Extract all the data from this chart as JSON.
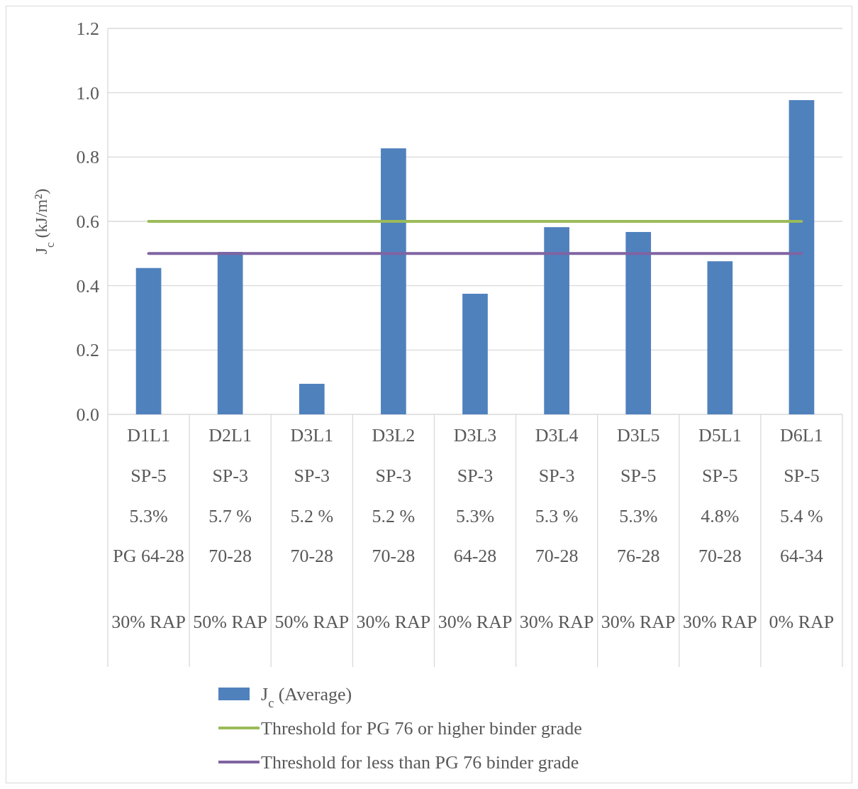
{
  "chart_data": {
    "type": "bar",
    "ylabel": "J$_{c}$ (kJ/m²)",
    "categories": [
      "D1L1\nSP-5\n5.3%\nPG 64-28\n30% RAP",
      "D2L1\nSP-3\n5.7 %\n70-28\n50% RAP",
      "D3L1\nSP-3\n5.2 %\n70-28\n50% RAP",
      "D3L2\nSP-3\n5.2 %\n70-28\n30% RAP",
      "D3L3\nSP-3\n5.3%\n64-28\n30% RAP",
      "D3L4\nSP-3\n5.3 %\n70-28\n30% RAP",
      "D3L5\nSP-5\n5.3%\n76-28\n30% RAP",
      "D5L1\nSP-5\n4.8%\n70-28\n30% RAP",
      "D6L1\nSP-5\n5.4 %\n64-34\n0% RAP"
    ],
    "series": [
      {
        "name": "J$_{c}$ (Average)",
        "color": "#4f81bd",
        "values": [
          0.455,
          0.505,
          0.095,
          0.827,
          0.375,
          0.582,
          0.567,
          0.476,
          0.977
        ]
      },
      {
        "name": "Threshold for PG 76 or higher binder grade",
        "type": "line",
        "color": "#9bbb59",
        "values": [
          0.6,
          0.6,
          0.6,
          0.6,
          0.6,
          0.6,
          0.6,
          0.6,
          0.6
        ]
      },
      {
        "name": "Threshold for less than PG 76 binder grade",
        "type": "line",
        "color": "#8064a2",
        "values": [
          0.5,
          0.5,
          0.5,
          0.5,
          0.5,
          0.5,
          0.5,
          0.5,
          0.5
        ]
      }
    ],
    "ylim": [
      0,
      1.2
    ],
    "yticks": [
      {
        "value": 0,
        "label": "0.0"
      },
      {
        "value": 0.2,
        "label": "0.2"
      },
      {
        "value": 0.4,
        "label": "0.4"
      },
      {
        "value": 0.6,
        "label": "0.6"
      },
      {
        "value": 0.8,
        "label": "0.8"
      },
      {
        "value": 1,
        "label": "1.0"
      },
      {
        "value": 1.2,
        "label": "1.2"
      }
    ],
    "grid": true,
    "legend": "bottom"
  }
}
